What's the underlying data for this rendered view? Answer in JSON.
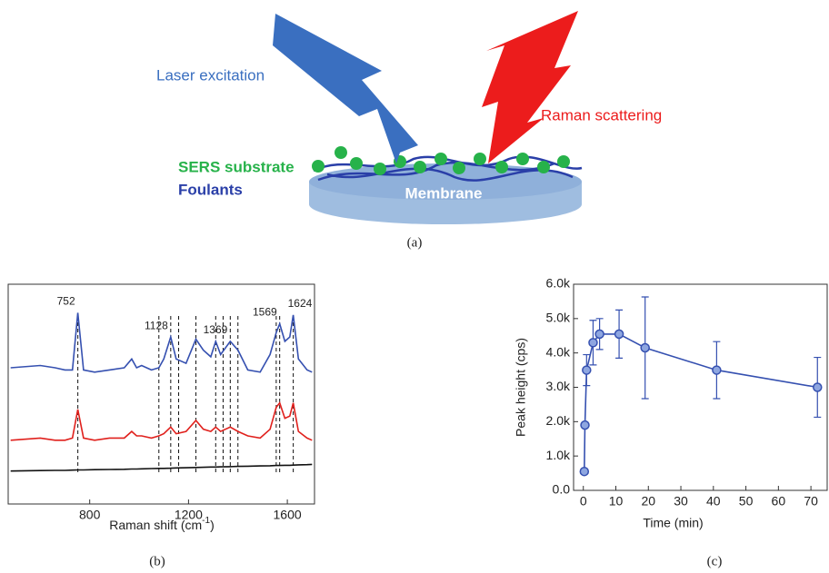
{
  "diagram": {
    "laser": "Laser excitation",
    "raman": "Raman scattering",
    "substrate": "SERS substrate",
    "foulants": "Foulants",
    "membrane": "Membrane"
  },
  "panel_labels": [
    "(a)",
    "(b)",
    "(c)"
  ],
  "chart_data": [
    {
      "type": "line",
      "x_label": "Raman shift (cm",
      "x_label_sup": "-1",
      "x_label_end": ")",
      "x": [
        480,
        600,
        660,
        700,
        730,
        752,
        775,
        820,
        880,
        940,
        970,
        990,
        1010,
        1050,
        1080,
        1100,
        1128,
        1150,
        1190,
        1230,
        1260,
        1290,
        1310,
        1330,
        1369,
        1400,
        1440,
        1490,
        1530,
        1555,
        1569,
        1590,
        1610,
        1624,
        1645,
        1680,
        1700
      ],
      "series": [
        {
          "color": "#3550b0",
          "values": [
            62,
            63,
            62,
            61,
            61,
            87,
            61,
            60,
            61,
            62,
            66,
            62,
            63,
            61,
            62,
            66,
            76,
            66,
            64,
            75,
            70,
            67,
            74,
            68,
            74,
            70,
            61,
            60,
            68,
            78,
            82,
            74,
            76,
            86,
            66,
            61,
            60
          ]
        },
        {
          "color": "#e0201c",
          "values": [
            29,
            30,
            29,
            29,
            30,
            43,
            30,
            29,
            30,
            30,
            33,
            31,
            31,
            30,
            31,
            32,
            35,
            32,
            33,
            38,
            34,
            33,
            35,
            33,
            35,
            33,
            31,
            30,
            34,
            44,
            46,
            39,
            40,
            46,
            33,
            30,
            29
          ]
        },
        {
          "color": "#111111",
          "values": [
            15,
            15.2,
            15.3,
            15.3,
            15.4,
            15.5,
            15.5,
            15.6,
            15.7,
            15.8,
            15.9,
            15.9,
            16,
            16.1,
            16.2,
            16.2,
            16.3,
            16.4,
            16.5,
            16.6,
            16.7,
            16.8,
            16.8,
            16.9,
            17,
            17.1,
            17.2,
            17.3,
            17.4,
            17.5,
            17.5,
            17.6,
            17.6,
            17.7,
            17.8,
            17.9,
            18
          ]
        }
      ],
      "xlim": [
        470,
        1710
      ],
      "xticks": [
        800,
        1200,
        1600
      ],
      "ylim": [
        0,
        100
      ],
      "reference_lines": [
        752,
        1080,
        1128,
        1160,
        1230,
        1310,
        1340,
        1369,
        1400,
        1555,
        1569,
        1624
      ],
      "peak_labels": [
        752,
        1128,
        1369,
        1569,
        1624
      ]
    },
    {
      "type": "line",
      "x_label": "Time (min)",
      "y_label": "Peak height (cps)",
      "x": [
        0.3,
        0.5,
        1,
        3,
        5,
        11,
        19,
        41,
        72
      ],
      "series": [
        {
          "color": "#3550b0",
          "values": [
            550,
            1900,
            3500,
            4300,
            4550,
            4550,
            4150,
            3500,
            3000
          ],
          "errors": [
            0,
            0,
            450,
            650,
            450,
            700,
            1480,
            830,
            870
          ]
        }
      ],
      "xlim": [
        -3,
        75
      ],
      "xticks": [
        0,
        10,
        20,
        30,
        40,
        50,
        60,
        70
      ],
      "ylim": [
        0,
        6000
      ],
      "yticks": [
        {
          "value": 0,
          "label": "0.0"
        },
        {
          "value": 1000,
          "label": "1.0k"
        },
        {
          "value": 2000,
          "label": "2.0k"
        },
        {
          "value": 3000,
          "label": "3.0k"
        },
        {
          "value": 4000,
          "label": "4.0k"
        },
        {
          "value": 5000,
          "label": "5.0k"
        },
        {
          "value": 6000,
          "label": "6.0k"
        }
      ]
    }
  ]
}
